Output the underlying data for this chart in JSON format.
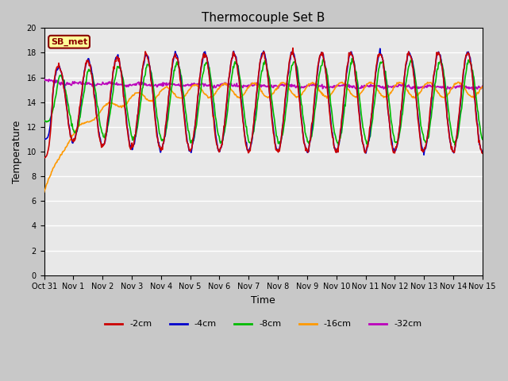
{
  "title": "Thermocouple Set B",
  "xlabel": "Time",
  "ylabel": "Temperature",
  "ylim": [
    0,
    20
  ],
  "yticks": [
    0,
    2,
    4,
    6,
    8,
    10,
    12,
    14,
    16,
    18,
    20
  ],
  "xtick_labels": [
    "Oct 31",
    "Nov 1",
    "Nov 2",
    "Nov 3",
    "Nov 4",
    "Nov 5",
    "Nov 6",
    "Nov 7",
    "Nov 8",
    "Nov 9",
    "Nov 10",
    "Nov 11",
    "Nov 12",
    "Nov 13",
    "Nov 14",
    "Nov 15"
  ],
  "legend_labels": [
    "-2cm",
    "-4cm",
    "-8cm",
    "-16cm",
    "-32cm"
  ],
  "legend_colors": [
    "#cc0000",
    "#0000cc",
    "#00bb00",
    "#ff9900",
    "#bb00bb"
  ],
  "annotation_text": "SB_met",
  "annotation_bg": "#ffff99",
  "annotation_border": "#880000",
  "plot_bg": "#e8e8e8",
  "grid_color": "#ffffff",
  "line_width": 1.2,
  "n_points": 720,
  "days": 15,
  "title_fontsize": 11,
  "tick_fontsize": 7,
  "label_fontsize": 9
}
